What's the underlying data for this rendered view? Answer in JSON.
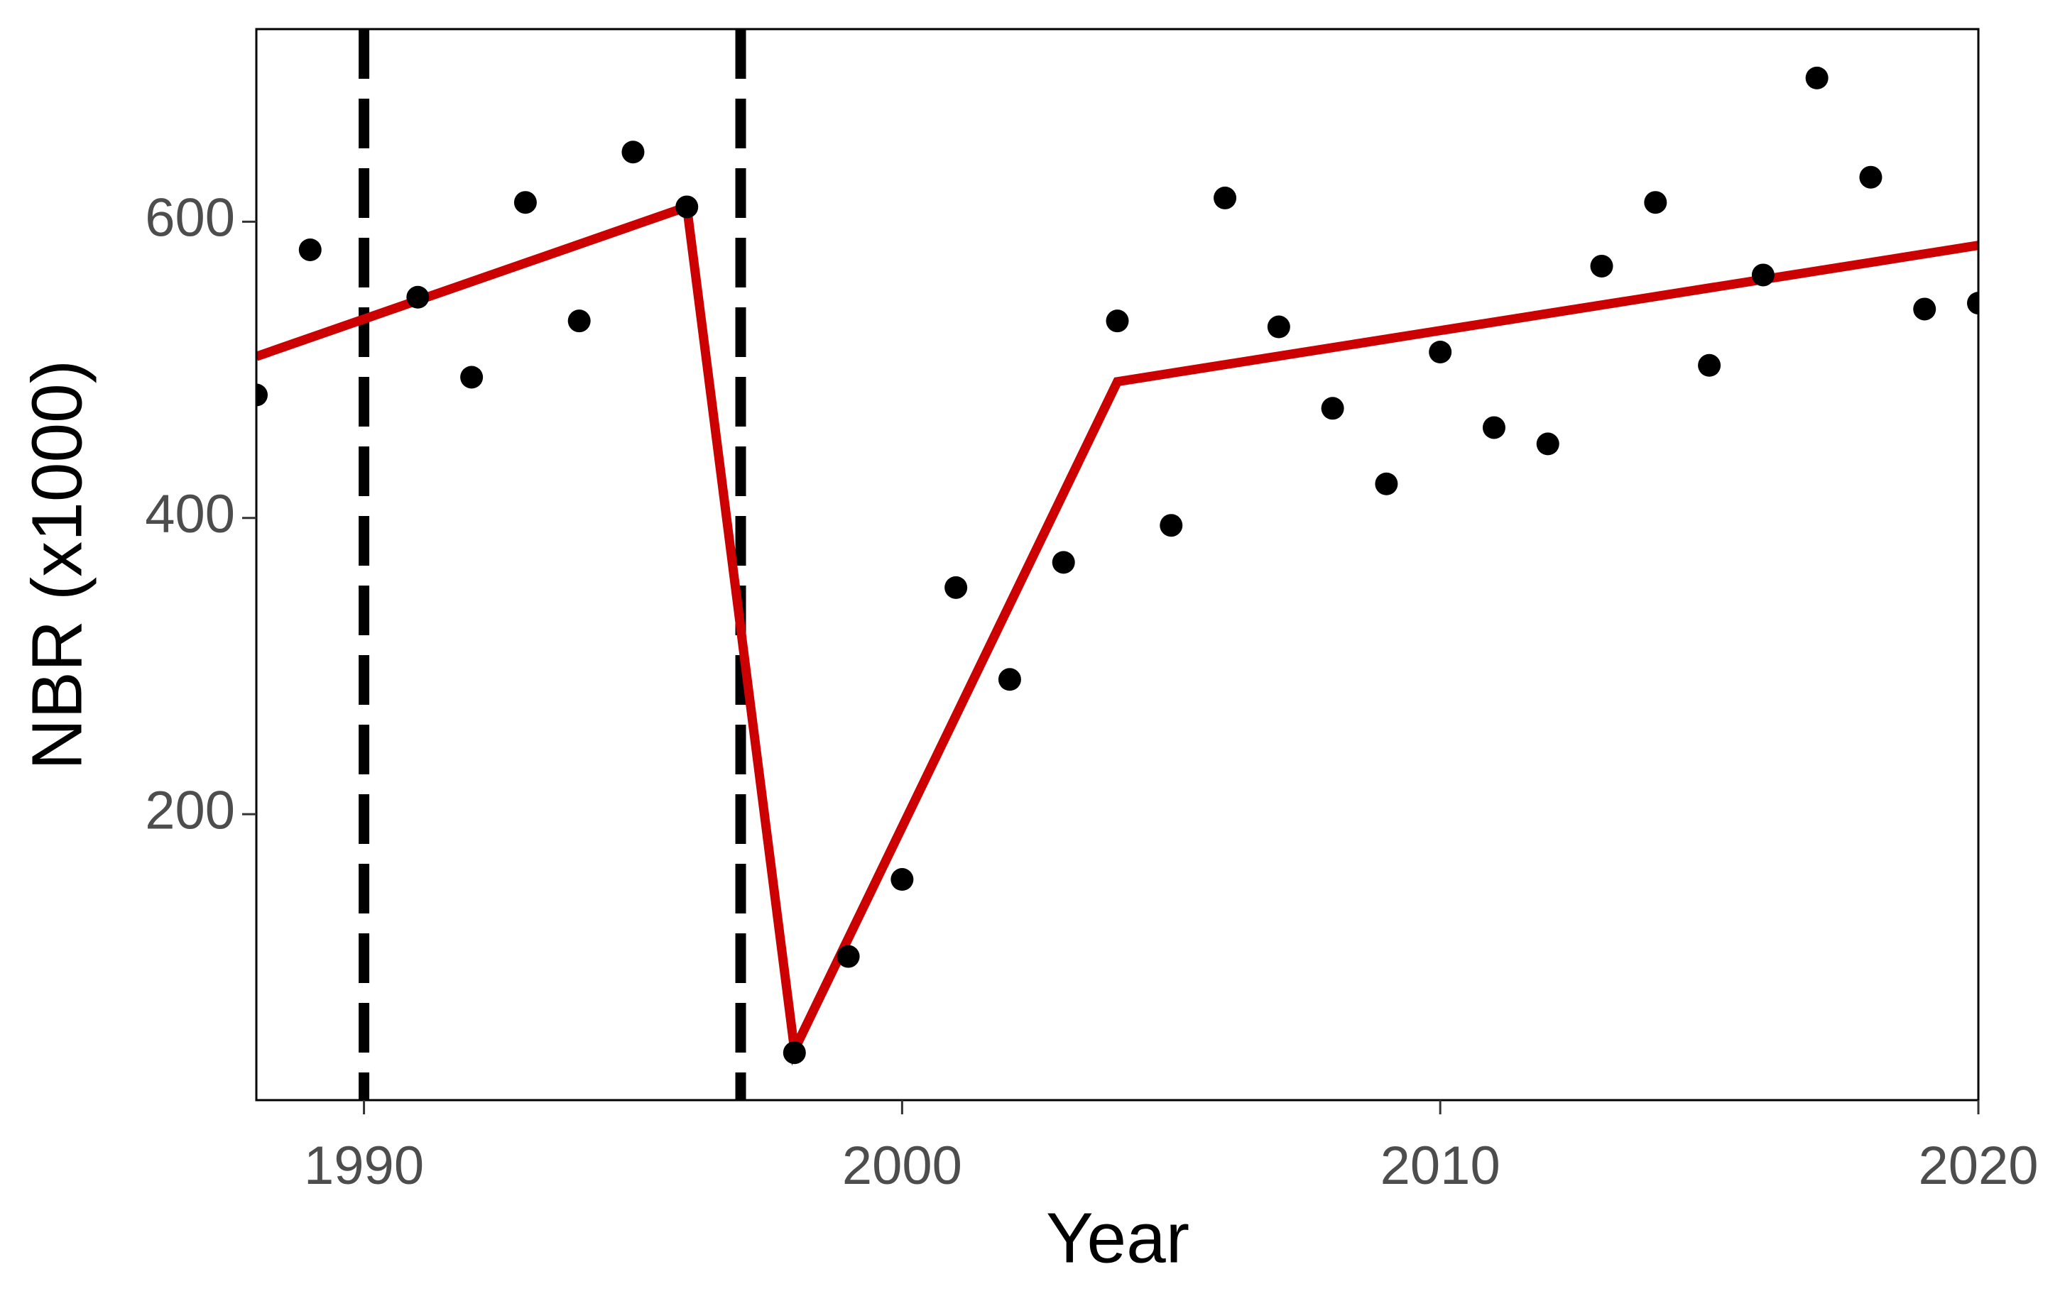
{
  "chart_data": {
    "type": "scatter",
    "x_label": "Year",
    "y_label": "NBR (x1000)",
    "xlim": [
      1988,
      2020
    ],
    "ylim": [
      7,
      730
    ],
    "xticks": [
      1990,
      2000,
      2010,
      2020
    ],
    "yticks": [
      200,
      400,
      600
    ],
    "vlines": [
      1990,
      1997
    ],
    "vline_color": "#000000",
    "series": [
      {
        "kind": "points",
        "color": "#000000",
        "x": [
          1988,
          1989,
          1991,
          1992,
          1993,
          1994,
          1995,
          1996,
          1998,
          1999,
          2000,
          2001,
          2002,
          2003,
          2004,
          2005,
          2006,
          2007,
          2008,
          2009,
          2010,
          2011,
          2012,
          2013,
          2014,
          2015,
          2016,
          2017,
          2018,
          2019,
          2020
        ],
        "values": [
          483,
          581,
          549,
          495,
          613,
          533,
          647,
          610,
          39,
          104,
          156,
          353,
          291,
          370,
          533,
          395,
          616,
          529,
          474,
          423,
          512,
          461,
          450,
          570,
          613,
          503,
          564,
          697,
          630,
          541,
          545
        ]
      },
      {
        "kind": "line",
        "color": "#cc0000",
        "x": [
          1988,
          1996,
          1998,
          2004,
          2020
        ],
        "values": [
          509,
          610,
          41,
          492,
          584
        ]
      }
    ]
  }
}
